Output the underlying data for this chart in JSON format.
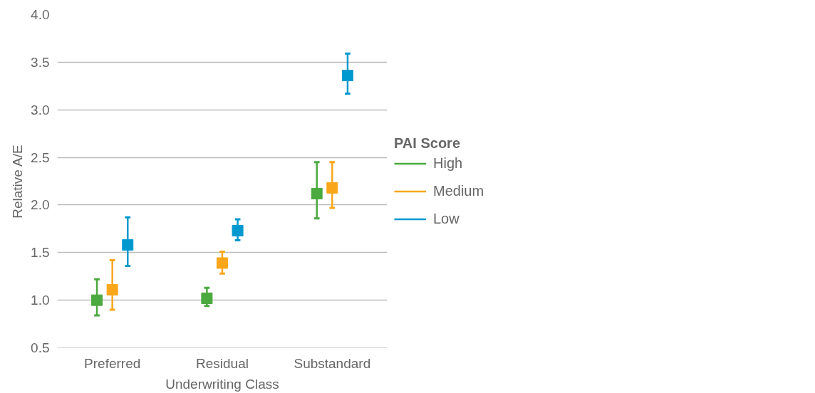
{
  "chart_data": {
    "type": "scatter",
    "xlabel": "Underwriting Class",
    "ylabel": "Relative A/E",
    "legend_title": "PAI Score",
    "categories": [
      "Preferred",
      "Residual",
      "Substandard"
    ],
    "series": [
      {
        "name": "High",
        "color": "#4aa93f",
        "values": [
          1.0,
          1.02,
          2.12
        ],
        "errors": [
          [
            0.84,
            1.22
          ],
          [
            0.94,
            1.13
          ],
          [
            1.86,
            2.45
          ]
        ]
      },
      {
        "name": "Medium",
        "color": "#f9a61b",
        "values": [
          1.11,
          1.39,
          2.18
        ],
        "errors": [
          [
            0.9,
            1.42
          ],
          [
            1.28,
            1.51
          ],
          [
            1.97,
            2.45
          ]
        ]
      },
      {
        "name": "Low",
        "color": "#0099cf",
        "values": [
          1.58,
          1.73,
          3.36
        ],
        "errors": [
          [
            1.36,
            1.87
          ],
          [
            1.63,
            1.85
          ],
          [
            3.17,
            3.59
          ]
        ]
      }
    ],
    "ylim": [
      0.5,
      4.0
    ],
    "yticks": [
      {
        "value": 0.5,
        "label": "0.5"
      },
      {
        "value": 1.0,
        "label": "1.0"
      },
      {
        "value": 1.5,
        "label": "1.5"
      },
      {
        "value": 2.0,
        "label": "2.0"
      },
      {
        "value": 2.5,
        "label": "2.5"
      },
      {
        "value": 3.0,
        "label": "3.0"
      },
      {
        "value": 3.5,
        "label": "3.5"
      },
      {
        "value": 4.0,
        "label": "4.0"
      }
    ],
    "grid": "y",
    "legend": "right",
    "marker": "square"
  }
}
